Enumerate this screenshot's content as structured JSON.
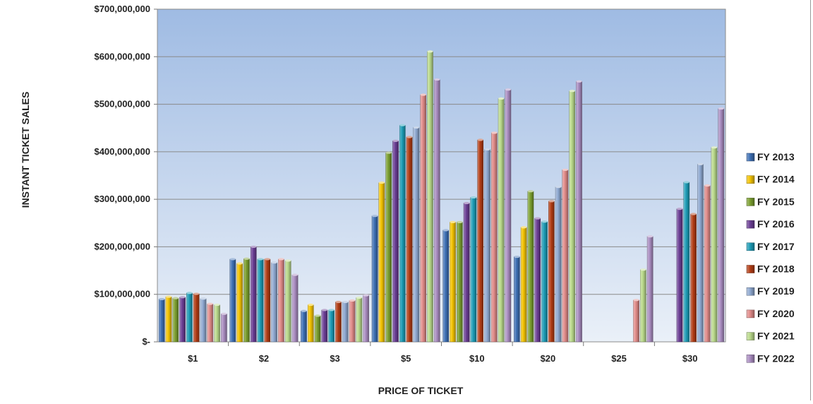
{
  "chart_data": {
    "type": "bar",
    "title": "",
    "xlabel": "PRICE OF TICKET",
    "ylabel": "INSTANT TICKET SALES",
    "ylim": [
      0,
      700000000
    ],
    "yticks": [
      0,
      100000000,
      200000000,
      300000000,
      400000000,
      500000000,
      600000000,
      700000000
    ],
    "ytick_labels": [
      "$-",
      "$100,000,000",
      "$200,000,000",
      "$300,000,000",
      "$400,000,000",
      "$500,000,000",
      "$600,000,000",
      "$700,000,000"
    ],
    "categories": [
      "$1",
      "$2",
      "$3",
      "$5",
      "$10",
      "$20",
      "$25",
      "$30"
    ],
    "grid": true,
    "legend_position": "right",
    "series": [
      {
        "name": "FY 2013",
        "color": "#3d6fb4",
        "values": [
          90000000,
          174000000,
          65000000,
          265000000,
          235000000,
          179000000,
          0,
          0
        ]
      },
      {
        "name": "FY 2014",
        "color": "#f2c200",
        "values": [
          95000000,
          165000000,
          78000000,
          335000000,
          252000000,
          241000000,
          0,
          0
        ]
      },
      {
        "name": "FY 2015",
        "color": "#7a9e2e",
        "values": [
          92000000,
          175000000,
          55000000,
          398000000,
          252000000,
          317000000,
          0,
          0
        ]
      },
      {
        "name": "FY 2016",
        "color": "#6a3d94",
        "values": [
          94000000,
          200000000,
          67000000,
          423000000,
          292000000,
          260000000,
          0,
          280000000
        ]
      },
      {
        "name": "FY 2017",
        "color": "#1c9bb5",
        "values": [
          103000000,
          174000000,
          67000000,
          456000000,
          304000000,
          253000000,
          0,
          336000000
        ]
      },
      {
        "name": "FY 2018",
        "color": "#b23c14",
        "values": [
          101000000,
          174000000,
          84000000,
          431000000,
          425000000,
          296000000,
          0,
          269000000
        ]
      },
      {
        "name": "FY 2019",
        "color": "#8ea8d0",
        "values": [
          91000000,
          167000000,
          84000000,
          451000000,
          405000000,
          326000000,
          0,
          374000000
        ]
      },
      {
        "name": "FY 2020",
        "color": "#e08a88",
        "values": [
          80000000,
          174000000,
          87000000,
          520000000,
          440000000,
          362000000,
          88000000,
          329000000
        ]
      },
      {
        "name": "FY 2021",
        "color": "#b9d98a",
        "values": [
          78000000,
          171000000,
          93000000,
          611000000,
          512000000,
          528000000,
          152000000,
          409000000
        ]
      },
      {
        "name": "FY 2022",
        "color": "#a98cc0",
        "values": [
          59000000,
          141000000,
          98000000,
          552000000,
          531000000,
          548000000,
          222000000,
          491000000
        ]
      }
    ]
  }
}
